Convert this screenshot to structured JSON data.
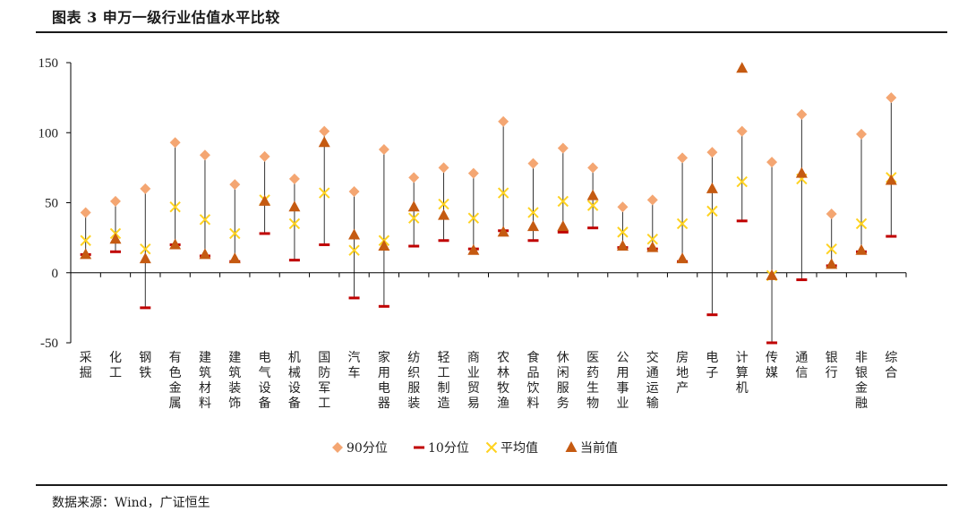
{
  "title": "图表 3 申万一级行业估值水平比较",
  "source": "数据来源：Wind，广证恒生",
  "colors": {
    "p90": "#f4a672",
    "p10": "#c00000",
    "mean": "#ffd21f",
    "current": "#c55a11",
    "range_line": "#333333",
    "axis": "#000000"
  },
  "chart_data": {
    "type": "scatter",
    "title": "申万一级行业估值水平比较",
    "xlabel": "",
    "ylabel": "",
    "ylim": [
      -50,
      150
    ],
    "yticks": [
      -50,
      0,
      50,
      100,
      150
    ],
    "grid": false,
    "legend_position": "bottom-center",
    "categories": [
      "采掘",
      "化工",
      "钢铁",
      "有色金属",
      "建筑材料",
      "建筑装饰",
      "电气设备",
      "机械设备",
      "国防军工",
      "汽车",
      "家用电器",
      "纺织服装",
      "轻工制造",
      "商业贸易",
      "农林牧渔",
      "食品饮料",
      "休闲服务",
      "医药生物",
      "公用事业",
      "交通运输",
      "房地产",
      "电子",
      "计算机",
      "传媒",
      "通信",
      "银行",
      "非银金融",
      "综合"
    ],
    "series": [
      {
        "name": "90分位",
        "marker": "diamond",
        "values": [
          43,
          51,
          60,
          93,
          84,
          63,
          83,
          67,
          101,
          58,
          88,
          68,
          75,
          71,
          108,
          78,
          89,
          75,
          47,
          52,
          82,
          86,
          101,
          79,
          113,
          42,
          99,
          125
        ]
      },
      {
        "name": "10分位",
        "marker": "dash",
        "values": [
          13,
          15,
          -25,
          20,
          12,
          8,
          28,
          9,
          20,
          -18,
          -24,
          19,
          23,
          17,
          30,
          23,
          29,
          32,
          18,
          17,
          8,
          -30,
          37,
          -50,
          -5,
          5,
          15,
          26
        ]
      },
      {
        "name": "平均值",
        "marker": "x",
        "values": [
          23,
          28,
          17,
          47,
          38,
          28,
          52,
          35,
          57,
          16,
          23,
          39,
          49,
          39,
          57,
          43,
          51,
          48,
          29,
          24,
          35,
          44,
          65,
          -2,
          67,
          17,
          35,
          68
        ]
      },
      {
        "name": "当前值",
        "marker": "triangle",
        "values": [
          13,
          24,
          10,
          20,
          13,
          10,
          51,
          47,
          93,
          27,
          19,
          47,
          41,
          16,
          29,
          33,
          33,
          55,
          19,
          18,
          10,
          60,
          146,
          -2,
          71,
          6,
          16,
          66
        ]
      }
    ],
    "range_from": "10分位",
    "range_to": "90分位"
  }
}
